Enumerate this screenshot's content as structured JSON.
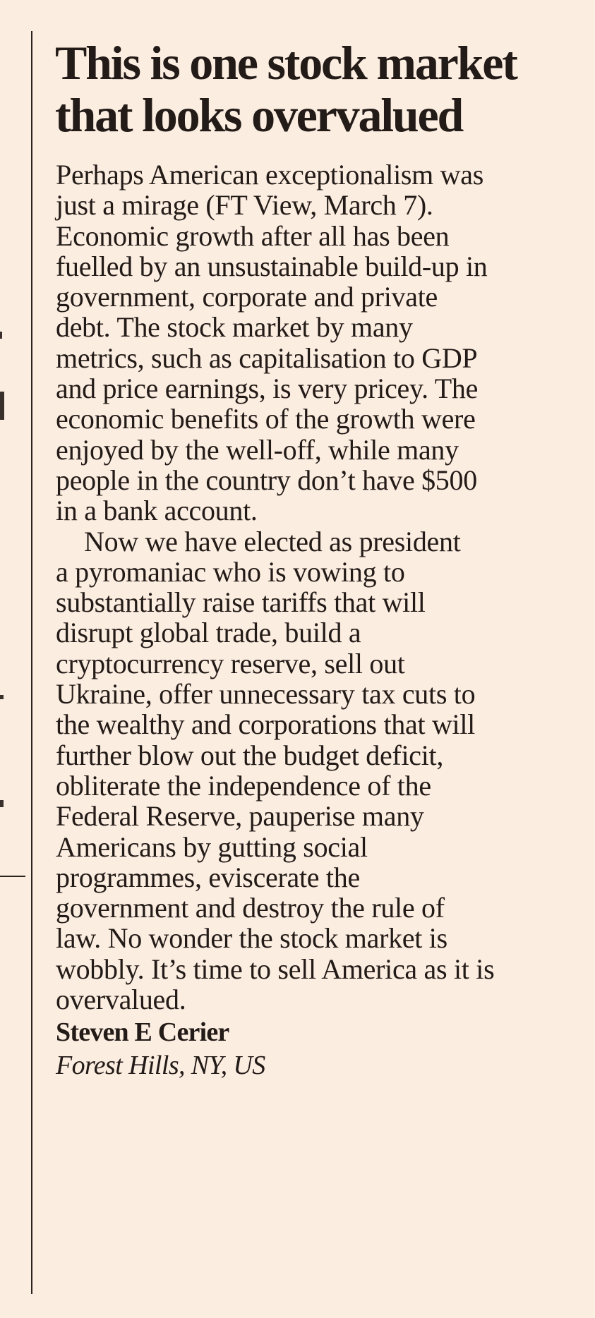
{
  "headline": {
    "lines": [
      "This is one stock market",
      "that looks overvalued"
    ]
  },
  "paragraphs": [
    {
      "lines": [
        "Perhaps American exceptionalism was",
        "just a mirage (FT View, March 7).",
        "Economic growth after all has been",
        "fuelled by an unsustainable build-up in",
        "government, corporate and private",
        "debt. The stock market by many",
        "metrics, such as capitalisation to GDP",
        "and price earnings, is very pricey. The",
        "economic benefits of the growth were",
        "enjoyed by the well-off, while many",
        "people in the country don’t have $500",
        "in a bank account."
      ]
    },
    {
      "lines": [
        "Now we have elected as president",
        "a pyromaniac who is vowing to",
        "substantially raise tariffs that will",
        "disrupt global trade, build a",
        "cryptocurrency reserve, sell out",
        "Ukraine, offer unnecessary tax cuts to",
        "the wealthy and corporations that will",
        "further blow out the budget deficit,",
        "obliterate the independence of the",
        "Federal Reserve, pauperise many",
        "Americans by gutting social",
        "programmes, eviscerate the",
        "government and destroy the rule of",
        "law. No wonder the stock market is",
        "wobbly. It’s time to sell America as it is",
        "overvalued."
      ]
    }
  ],
  "signature": {
    "name": "Steven E Cerier",
    "location": "Forest Hills, NY, US"
  },
  "colors": {
    "background": "#fcede1",
    "text": "#231b17"
  }
}
